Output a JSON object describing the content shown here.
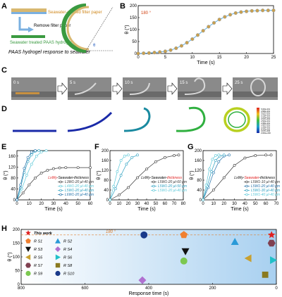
{
  "panels": {
    "a": {
      "label": "A",
      "text1": "Seawater-soaked filter paper",
      "text2": "Remove filter paper",
      "text3": "Seawater treated PAAS hydrogel",
      "caption": "PAAS hydrogel response to seawater",
      "angle_label": "θ"
    },
    "b": {
      "label": "B",
      "annotation": "180 °"
    },
    "c": {
      "label": "C",
      "times": [
        "0 s",
        "5 s",
        "10 s",
        "15 s",
        "25 s"
      ]
    },
    "d": {
      "label": "D",
      "colorbar_ticks": [
        "5.000e-001",
        "4.583e-001",
        "4.167e-001",
        "3.750e-001",
        "3.333e-001",
        "2.917e-001",
        "2.500e-001",
        "2.083e-001",
        "1.667e-001",
        "1.250e-001",
        "8.333e-002",
        "4.167e-002",
        "0.000e+000"
      ]
    },
    "e": {
      "label": "E"
    },
    "f": {
      "label": "F"
    },
    "g": {
      "label": "G"
    },
    "h": {
      "label": "H"
    }
  },
  "chart_data": [
    {
      "id": "B",
      "type": "scatter",
      "xlabel": "Time (s)",
      "ylabel": "θ (°)",
      "xlim": [
        0,
        25
      ],
      "ylim": [
        0,
        200
      ],
      "xticks": [
        0,
        5,
        10,
        15,
        20,
        25
      ],
      "yticks": [
        0,
        50,
        100,
        150,
        200
      ],
      "x": [
        0,
        1,
        2,
        3,
        4,
        5,
        6,
        7,
        8,
        9,
        10,
        11,
        12,
        13,
        14,
        15,
        16,
        17,
        18,
        19,
        20,
        21,
        22,
        23,
        24,
        25
      ],
      "y": [
        0,
        1,
        2,
        4,
        6,
        9,
        14,
        22,
        32,
        45,
        60,
        77,
        95,
        112,
        128,
        142,
        153,
        162,
        169,
        173,
        176,
        178,
        179,
        180,
        180,
        180
      ],
      "marker_color": "#c8a050"
    },
    {
      "id": "E",
      "type": "line",
      "title": "LxWy-Seawater-thickness",
      "title_red_part": "LxWy",
      "xlabel": "Time (s)",
      "ylabel": "θ (°)",
      "xlim": [
        0,
        60
      ],
      "ylim": [
        0,
        180
      ],
      "xticks": [
        0,
        10,
        20,
        30,
        40,
        50,
        60
      ],
      "yticks": [
        0,
        40,
        80,
        120,
        160
      ],
      "series": [
        {
          "name": "L3W1-20 μl-40 μm",
          "color": "#333333",
          "x": [
            0,
            5,
            10,
            15,
            20,
            25,
            30,
            35,
            40,
            50,
            60
          ],
          "y": [
            0,
            25,
            55,
            80,
            98,
            108,
            114,
            117,
            118,
            118,
            118
          ]
        },
        {
          "name": "L4W1-20 μl-40 μm",
          "color": "#5bc8d8",
          "x": [
            0,
            4,
            8,
            12,
            16,
            20,
            24
          ],
          "y": [
            0,
            40,
            90,
            130,
            160,
            175,
            180
          ]
        },
        {
          "name": "L5W1-20 μl-40 μm",
          "color": "#2a9fc0",
          "x": [
            0,
            3,
            6,
            9,
            12,
            15,
            18
          ],
          "y": [
            0,
            45,
            100,
            140,
            165,
            178,
            180
          ]
        },
        {
          "name": "L6W1-20 μl-40 μm",
          "color": "#1f6fa8",
          "x": [
            0,
            3,
            6,
            9,
            12,
            15
          ],
          "y": [
            0,
            55,
            115,
            155,
            175,
            180
          ]
        }
      ]
    },
    {
      "id": "F",
      "type": "line",
      "title": "LxWy-Seawater-thickness",
      "title_red_part": "thickness",
      "xlabel": "Time (s)",
      "ylabel": "θ (°)",
      "xlim": [
        0,
        80
      ],
      "ylim": [
        0,
        200
      ],
      "xticks": [
        0,
        10,
        20,
        30,
        40,
        50,
        60,
        70,
        80
      ],
      "yticks": [
        0,
        40,
        80,
        120,
        160,
        200
      ],
      "series": [
        {
          "name": "L5W1-20 μl-60 μm",
          "color": "#333333",
          "x": [
            0,
            10,
            20,
            30,
            40,
            50,
            60,
            70,
            75
          ],
          "y": [
            0,
            20,
            50,
            90,
            125,
            155,
            172,
            180,
            182
          ]
        },
        {
          "name": "L5W1-20 μl-50 μm",
          "color": "#2a9fc0",
          "x": [
            0,
            6,
            12,
            18,
            24,
            30
          ],
          "y": [
            0,
            45,
            100,
            145,
            172,
            182
          ]
        },
        {
          "name": "L5W1-20 μl-40 μm",
          "color": "#5bc8d8",
          "x": [
            0,
            4,
            8,
            12,
            16,
            20
          ],
          "y": [
            0,
            55,
            115,
            160,
            178,
            182
          ]
        }
      ]
    },
    {
      "id": "G",
      "type": "line",
      "title": "LxWy-Seawater-thickness",
      "title_red_part": "Seawater",
      "xlabel": "Time (s)",
      "ylabel": "θ (°)",
      "xlim": [
        0,
        70
      ],
      "ylim": [
        0,
        200
      ],
      "xticks": [
        0,
        10,
        20,
        30,
        40,
        50,
        60,
        70
      ],
      "yticks": [
        0,
        40,
        80,
        120,
        160,
        200
      ],
      "series": [
        {
          "name": "L5W1-10 μl-40 μm",
          "color": "#333333",
          "x": [
            0,
            10,
            20,
            30,
            40,
            50,
            60,
            65
          ],
          "y": [
            0,
            40,
            90,
            140,
            170,
            180,
            182,
            182
          ]
        },
        {
          "name": "L5W1-20 μl-40 μm",
          "color": "#1f6fa8",
          "x": [
            0,
            5,
            10,
            15,
            20,
            25
          ],
          "y": [
            0,
            50,
            110,
            155,
            178,
            182
          ]
        },
        {
          "name": "L5W1-30 μl-40 μm",
          "color": "#2a9fc0",
          "x": [
            0,
            4,
            8,
            12,
            16,
            20
          ],
          "y": [
            0,
            55,
            115,
            160,
            178,
            182
          ]
        },
        {
          "name": "L5W1-40 μl-40 μm",
          "color": "#5bc8d8",
          "x": [
            0,
            3,
            6,
            9,
            12,
            15
          ],
          "y": [
            0,
            60,
            125,
            165,
            180,
            182
          ]
        }
      ]
    },
    {
      "id": "H",
      "type": "scatter",
      "xlabel": "Response time (s)",
      "ylabel": "θ (°)",
      "xlim": [
        800,
        0
      ],
      "ylim": [
        0,
        200
      ],
      "xticks": [
        800,
        600,
        400,
        200,
        0
      ],
      "yticks": [
        0,
        50,
        100,
        150,
        200
      ],
      "annotation": "180 °",
      "series": [
        {
          "name": "This work",
          "shape": "star",
          "color": "#e02020",
          "x": 15,
          "y": 180
        },
        {
          "name": "R S1",
          "shape": "pentagon",
          "color": "#f08030",
          "x": 290,
          "y": 180
        },
        {
          "name": "R S2",
          "shape": "triangle-up",
          "color": "#2a9ad8",
          "x": 130,
          "y": 155
        },
        {
          "name": "R S3",
          "shape": "triangle-down",
          "color": "#111111",
          "x": 285,
          "y": 120
        },
        {
          "name": "R S4",
          "shape": "diamond",
          "color": "#b070d0",
          "x": 420,
          "y": 15
        },
        {
          "name": "R S5",
          "shape": "triangle-left",
          "color": "#c8a030",
          "x": 88,
          "y": 95
        },
        {
          "name": "R S6",
          "shape": "triangle-right",
          "color": "#20c0c8",
          "x": 10,
          "y": 88
        },
        {
          "name": "R S7",
          "shape": "hexagon",
          "color": "#804050",
          "x": 15,
          "y": 150
        },
        {
          "name": "R S8",
          "shape": "square",
          "color": "#8a7a20",
          "x": 35,
          "y": 35
        },
        {
          "name": "R S9",
          "shape": "circle",
          "color": "#7cc850",
          "x": 290,
          "y": 85
        },
        {
          "name": "R S10",
          "shape": "circle",
          "color": "#1a3a8a",
          "x": 415,
          "y": 180
        }
      ]
    }
  ]
}
